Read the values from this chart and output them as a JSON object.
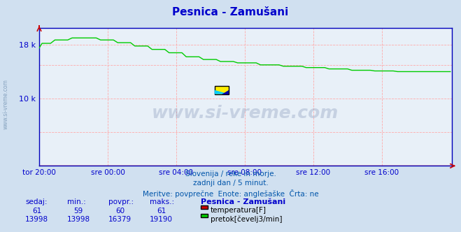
{
  "title": "Pesnica - Zamušani",
  "bg_color": "#d0e0f0",
  "plot_bg_color": "#e8f0f8",
  "line_color_flow": "#00cc00",
  "line_color_temp": "#cc0000",
  "axis_color": "#0000bb",
  "title_color": "#0000cc",
  "tick_label_color": "#0000cc",
  "watermark_side": "www.si-vreme.com",
  "x_tick_labels": [
    "tor 20:00",
    "sre 00:00",
    "sre 04:00",
    "sre 08:00",
    "sre 12:00",
    "sre 16:00"
  ],
  "x_tick_positions": [
    0,
    48,
    96,
    144,
    192,
    240
  ],
  "ylim": [
    0,
    20500
  ],
  "xlim": [
    0,
    289
  ],
  "subtitle1": "Slovenija / reke in morje.",
  "subtitle2": "zadnji dan / 5 minut.",
  "subtitle3": "Meritve: povprečne  Enote: anglešaške  Črta: ne",
  "table_headers": [
    "sedaj:",
    "min.:",
    "povpr.:",
    "maks.:",
    "Pesnica - Zamušani"
  ],
  "table_row1": [
    "61",
    "59",
    "60",
    "61"
  ],
  "table_row2": [
    "13998",
    "13998",
    "16379",
    "19190"
  ],
  "label_temp": "temperatura[F]",
  "label_flow": "pretok[čevelj3/min]",
  "color_temp_box": "#cc0000",
  "color_flow_box": "#00cc00",
  "watermark_text": "www.si-vreme.com",
  "n_points": 289
}
